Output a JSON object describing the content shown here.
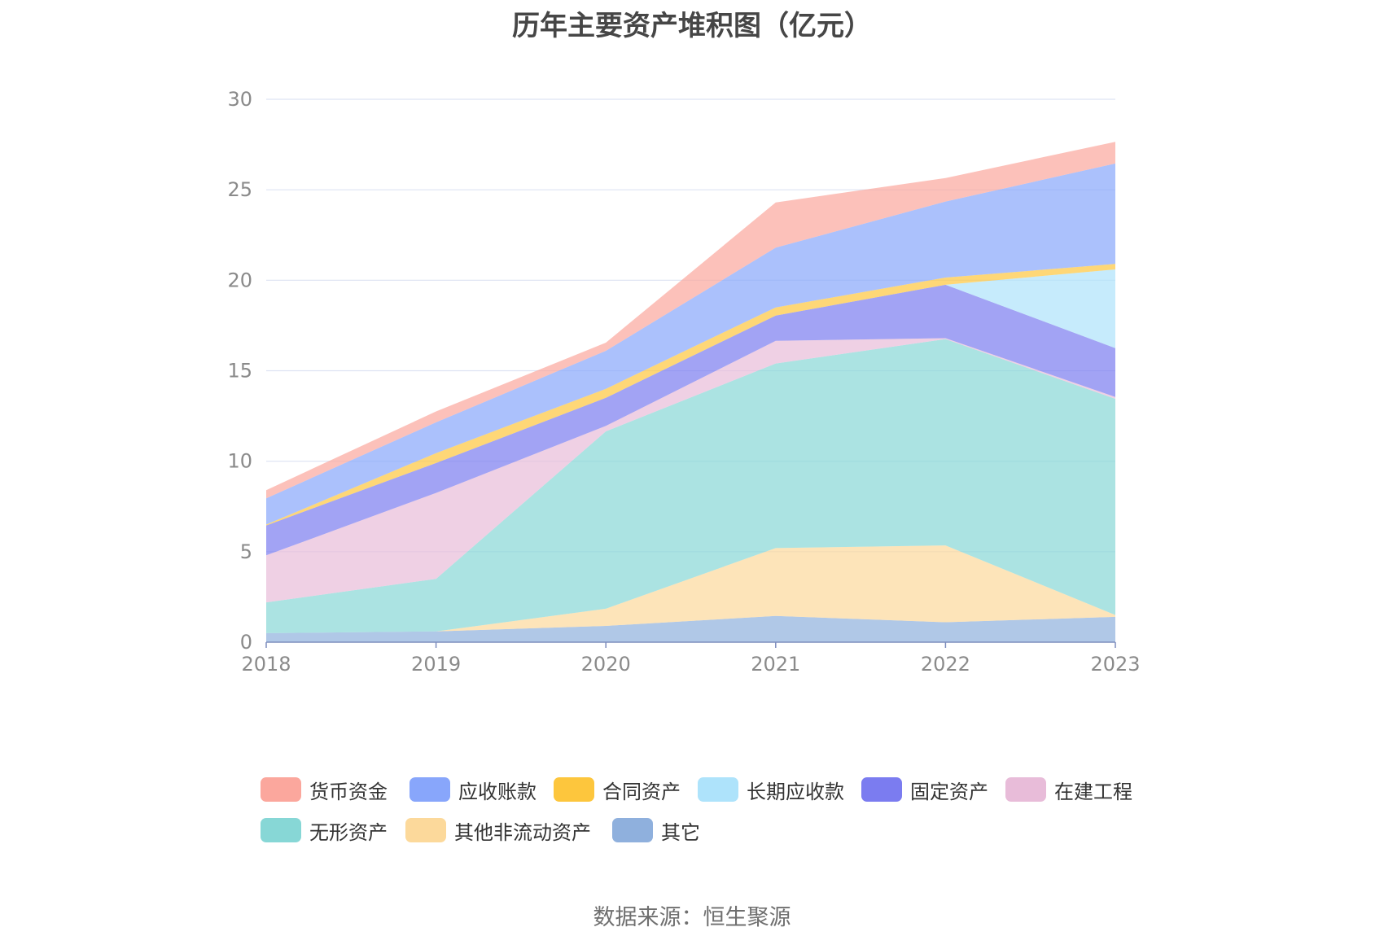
{
  "title": "历年主要资产堆积图（亿元）",
  "source": "数据来源：恒生聚源",
  "chart_data": {
    "type": "area",
    "stacked": true,
    "categories": [
      "2018",
      "2019",
      "2020",
      "2021",
      "2022",
      "2023"
    ],
    "ylim": [
      0,
      30
    ],
    "yticks": [
      0,
      5,
      10,
      15,
      20,
      25,
      30
    ],
    "grid": true,
    "legend_position": "bottom",
    "series": [
      {
        "name": "其它",
        "color": "#8fb0dd",
        "values": [
          0.5,
          0.6,
          0.9,
          1.45,
          1.1,
          1.4
        ]
      },
      {
        "name": "其他非流动资产",
        "color": "#fcd99b",
        "values": [
          0.0,
          0.0,
          0.95,
          3.75,
          4.25,
          0.1
        ]
      },
      {
        "name": "无形资产",
        "color": "#87d7d6",
        "values": [
          1.7,
          2.9,
          9.8,
          10.2,
          11.4,
          11.95
        ]
      },
      {
        "name": "在建工程",
        "color": "#e8bcd9",
        "values": [
          2.6,
          4.75,
          0.3,
          1.25,
          0.05,
          0.1
        ]
      },
      {
        "name": "固定资产",
        "color": "#7b7cf0",
        "values": [
          1.65,
          1.65,
          1.55,
          1.4,
          2.95,
          2.7
        ]
      },
      {
        "name": "长期应收款",
        "color": "#aee3fb",
        "values": [
          0.0,
          0.0,
          0.0,
          0.0,
          0.0,
          4.35
        ]
      },
      {
        "name": "合同资产",
        "color": "#fdc63d",
        "values": [
          0.05,
          0.55,
          0.5,
          0.45,
          0.4,
          0.3
        ]
      },
      {
        "name": "应收账款",
        "color": "#88a6fb",
        "values": [
          1.45,
          1.7,
          2.1,
          3.3,
          4.2,
          5.55
        ]
      },
      {
        "name": "货币资金",
        "color": "#fba79d",
        "values": [
          0.45,
          0.6,
          0.45,
          2.5,
          1.3,
          1.2
        ]
      }
    ]
  },
  "legend": [
    {
      "label": "货币资金",
      "color": "#fba79d"
    },
    {
      "label": "应收账款",
      "color": "#88a6fb"
    },
    {
      "label": "合同资产",
      "color": "#fdc63d"
    },
    {
      "label": "长期应收款",
      "color": "#aee3fb"
    },
    {
      "label": "固定资产",
      "color": "#7b7cf0"
    },
    {
      "label": "在建工程",
      "color": "#e8bcd9"
    },
    {
      "label": "无形资产",
      "color": "#87d7d6"
    },
    {
      "label": "其他非流动资产",
      "color": "#fcd99b"
    },
    {
      "label": "其它",
      "color": "#8fb0dd"
    }
  ]
}
